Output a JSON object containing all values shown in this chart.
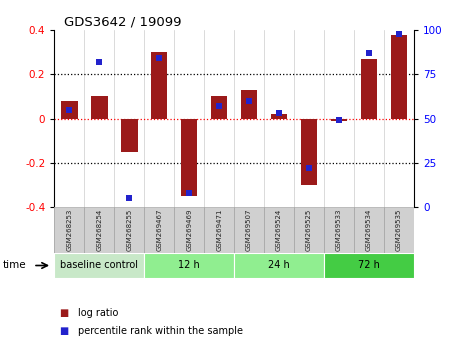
{
  "title": "GDS3642 / 19099",
  "samples": [
    "GSM268253",
    "GSM268254",
    "GSM268255",
    "GSM269467",
    "GSM269469",
    "GSM269471",
    "GSM269507",
    "GSM269524",
    "GSM269525",
    "GSM269533",
    "GSM269534",
    "GSM269535"
  ],
  "log_ratio": [
    0.08,
    0.1,
    -0.15,
    0.3,
    -0.35,
    0.1,
    0.13,
    0.02,
    -0.3,
    -0.01,
    0.27,
    0.38
  ],
  "percentile_rank": [
    55,
    82,
    5,
    84,
    8,
    57,
    60,
    53,
    22,
    49,
    87,
    98
  ],
  "bar_color": "#9b1a1a",
  "dot_color": "#2222cc",
  "groups": [
    {
      "label": "baseline control",
      "start": 0,
      "end": 3,
      "color": "#c8e8c8"
    },
    {
      "label": "12 h",
      "start": 3,
      "end": 6,
      "color": "#90ee90"
    },
    {
      "label": "24 h",
      "start": 6,
      "end": 9,
      "color": "#90ee90"
    },
    {
      "label": "72 h",
      "start": 9,
      "end": 12,
      "color": "#44cc44"
    }
  ],
  "ylim_left": [
    -0.4,
    0.4
  ],
  "ylim_right": [
    0,
    100
  ],
  "yticks_left": [
    -0.4,
    -0.2,
    0.0,
    0.2,
    0.4
  ],
  "yticks_right": [
    0,
    25,
    50,
    75,
    100
  ],
  "background_color": "#ffffff",
  "sample_box_color": "#d0d0d0",
  "sample_box_edge": "#aaaaaa",
  "time_label": "time",
  "legend_items": [
    {
      "label": "log ratio",
      "color": "#9b1a1a"
    },
    {
      "label": "percentile rank within the sample",
      "color": "#2222cc"
    }
  ]
}
